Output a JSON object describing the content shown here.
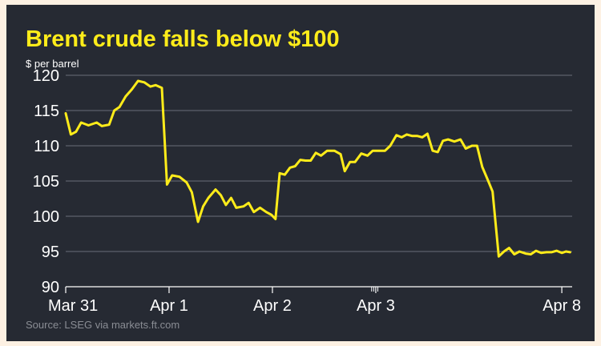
{
  "chart_data": {
    "type": "line",
    "title": "Brent crude falls below $100",
    "ylabel": "$ per barrel",
    "xlabel": "",
    "source": "Source: LSEG via markets.ft.com",
    "ylim": [
      90,
      120
    ],
    "yticks": [
      90,
      95,
      100,
      105,
      110,
      115,
      120
    ],
    "xlim": [
      0,
      4.9
    ],
    "xticks": [
      {
        "label": "Mar 31",
        "x": 0
      },
      {
        "label": "Apr 1",
        "x": 1
      },
      {
        "label": "Apr 2",
        "x": 2
      },
      {
        "label": "Apr 3",
        "x": 3
      },
      {
        "label": "Apr 8",
        "x": 4.8
      }
    ],
    "grid": true,
    "colors": {
      "line": "#ffec1a",
      "title": "#ffec1a",
      "background": "#262a33",
      "grid": "#6b6f78",
      "frame": "#fdf1e3",
      "source": "#8a8d94"
    },
    "series": [
      {
        "values": [
          [
            0.0,
            114.6
          ],
          [
            0.05,
            111.6
          ],
          [
            0.1,
            112.0
          ],
          [
            0.15,
            113.3
          ],
          [
            0.22,
            112.9
          ],
          [
            0.3,
            113.3
          ],
          [
            0.35,
            112.8
          ],
          [
            0.42,
            113.0
          ],
          [
            0.47,
            115.0
          ],
          [
            0.52,
            115.5
          ],
          [
            0.58,
            117.0
          ],
          [
            0.64,
            118.0
          ],
          [
            0.7,
            119.2
          ],
          [
            0.76,
            119.0
          ],
          [
            0.82,
            118.4
          ],
          [
            0.87,
            118.6
          ],
          [
            0.93,
            118.2
          ],
          [
            0.98,
            104.5
          ],
          [
            1.03,
            105.8
          ],
          [
            1.1,
            105.6
          ],
          [
            1.17,
            104.8
          ],
          [
            1.22,
            103.4
          ],
          [
            1.28,
            99.2
          ],
          [
            1.33,
            101.4
          ],
          [
            1.38,
            102.6
          ],
          [
            1.45,
            103.8
          ],
          [
            1.5,
            103.0
          ],
          [
            1.55,
            101.6
          ],
          [
            1.6,
            102.6
          ],
          [
            1.65,
            101.2
          ],
          [
            1.72,
            101.4
          ],
          [
            1.77,
            101.9
          ],
          [
            1.82,
            100.6
          ],
          [
            1.88,
            101.2
          ],
          [
            1.94,
            100.6
          ],
          [
            1.99,
            100.2
          ],
          [
            2.03,
            99.6
          ],
          [
            2.07,
            106.1
          ],
          [
            2.12,
            105.9
          ],
          [
            2.17,
            106.9
          ],
          [
            2.22,
            107.1
          ],
          [
            2.27,
            108.0
          ],
          [
            2.32,
            107.9
          ],
          [
            2.37,
            107.9
          ],
          [
            2.42,
            109.0
          ],
          [
            2.47,
            108.6
          ],
          [
            2.53,
            109.3
          ],
          [
            2.6,
            109.3
          ],
          [
            2.66,
            108.8
          ],
          [
            2.7,
            106.4
          ],
          [
            2.75,
            107.7
          ],
          [
            2.8,
            107.7
          ],
          [
            2.86,
            108.9
          ],
          [
            2.92,
            108.6
          ],
          [
            2.97,
            109.3
          ],
          [
            3.03,
            109.3
          ],
          [
            3.09,
            109.3
          ],
          [
            3.14,
            110.0
          ],
          [
            3.2,
            111.5
          ],
          [
            3.25,
            111.2
          ],
          [
            3.3,
            111.6
          ],
          [
            3.35,
            111.4
          ],
          [
            3.4,
            111.4
          ],
          [
            3.45,
            111.2
          ],
          [
            3.5,
            111.7
          ],
          [
            3.55,
            109.3
          ],
          [
            3.6,
            109.1
          ],
          [
            3.65,
            110.7
          ],
          [
            3.7,
            110.9
          ],
          [
            3.76,
            110.6
          ],
          [
            3.82,
            110.9
          ],
          [
            3.87,
            109.6
          ],
          [
            3.93,
            110.0
          ],
          [
            3.98,
            110.0
          ],
          [
            4.03,
            107.0
          ],
          [
            4.08,
            105.3
          ],
          [
            4.13,
            103.5
          ],
          [
            4.19,
            94.3
          ],
          [
            4.24,
            95.0
          ],
          [
            4.29,
            95.5
          ],
          [
            4.34,
            94.6
          ],
          [
            4.39,
            95.0
          ],
          [
            4.45,
            94.7
          ],
          [
            4.5,
            94.6
          ],
          [
            4.55,
            95.1
          ],
          [
            4.6,
            94.8
          ],
          [
            4.65,
            94.9
          ],
          [
            4.7,
            94.9
          ],
          [
            4.75,
            95.1
          ],
          [
            4.8,
            94.8
          ],
          [
            4.84,
            95.0
          ],
          [
            4.88,
            94.9
          ]
        ]
      }
    ]
  }
}
